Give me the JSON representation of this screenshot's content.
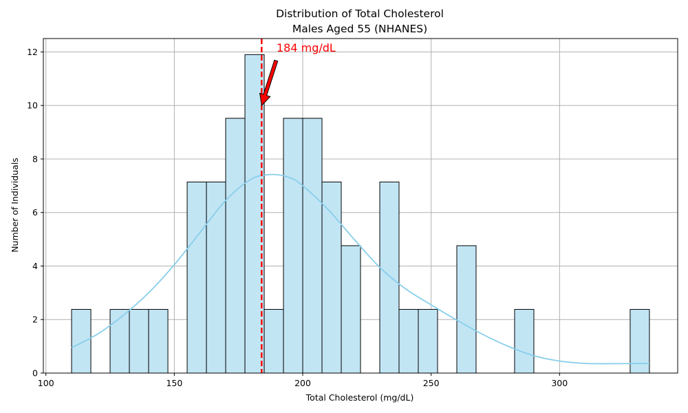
{
  "chart_data": {
    "type": "bar",
    "title": "Distribution of Total Cholesterol",
    "subtitle": "Males Aged 55 (NHANES)",
    "xlabel": "Total Cholesterol (mg/dL)",
    "ylabel": "Number of Individuals",
    "xlim": [
      99,
      346
    ],
    "ylim": [
      0,
      12.5
    ],
    "x_ticks": [
      100,
      150,
      200,
      250,
      300
    ],
    "y_ticks": [
      0,
      2,
      4,
      6,
      8,
      10,
      12
    ],
    "grid": true,
    "bin_width": 7.5,
    "bins": [
      {
        "start": 110,
        "value": 2.38
      },
      {
        "start": 117.5,
        "value": 0
      },
      {
        "start": 125,
        "value": 2.38
      },
      {
        "start": 132.5,
        "value": 2.38
      },
      {
        "start": 140,
        "value": 2.38
      },
      {
        "start": 147.5,
        "value": 0
      },
      {
        "start": 155,
        "value": 7.14
      },
      {
        "start": 162.5,
        "value": 7.14
      },
      {
        "start": 170,
        "value": 9.52
      },
      {
        "start": 177.5,
        "value": 11.9
      },
      {
        "start": 185,
        "value": 2.38
      },
      {
        "start": 192.5,
        "value": 9.52
      },
      {
        "start": 200,
        "value": 9.52
      },
      {
        "start": 207.5,
        "value": 7.14
      },
      {
        "start": 215,
        "value": 4.76
      },
      {
        "start": 222.5,
        "value": 0
      },
      {
        "start": 230,
        "value": 7.14
      },
      {
        "start": 237.5,
        "value": 2.38
      },
      {
        "start": 245,
        "value": 2.38
      },
      {
        "start": 252.5,
        "value": 0
      },
      {
        "start": 260,
        "value": 4.76
      },
      {
        "start": 267.5,
        "value": 0
      },
      {
        "start": 275,
        "value": 0
      },
      {
        "start": 282.5,
        "value": 2.38
      },
      {
        "start": 290,
        "value": 0
      },
      {
        "start": 297.5,
        "value": 0
      },
      {
        "start": 305,
        "value": 0
      },
      {
        "start": 312.5,
        "value": 0
      },
      {
        "start": 320,
        "value": 0
      },
      {
        "start": 327.5,
        "value": 2.38
      }
    ],
    "kde": {
      "x": [
        110,
        120,
        130,
        140,
        150,
        160,
        170,
        180,
        188,
        195,
        200,
        210,
        220,
        230,
        240,
        250,
        260,
        270,
        280,
        290,
        300,
        310,
        320,
        335
      ],
      "y": [
        0.95,
        1.45,
        2.15,
        3.0,
        4.05,
        5.25,
        6.45,
        7.25,
        7.42,
        7.3,
        7.0,
        6.1,
        5.0,
        3.95,
        3.15,
        2.55,
        1.98,
        1.45,
        1.0,
        0.65,
        0.45,
        0.36,
        0.35,
        0.36
      ]
    },
    "annotation": {
      "text": "184 mg/dL",
      "value": 184
    },
    "colors": {
      "bar_fill": "#c2e5f4",
      "bar_edge": "#000000",
      "kde_line": "#87ceeb",
      "marker": "#ff0000",
      "grid": "#b0b0b0"
    }
  }
}
